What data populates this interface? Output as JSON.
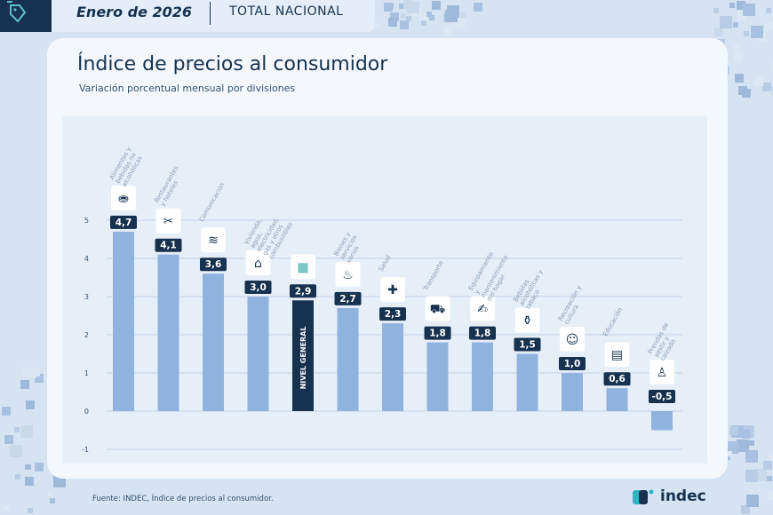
{
  "header": {
    "date": "Enero de 2026",
    "scope": "TOTAL NACIONAL"
  },
  "title": "Índice de precios al consumidor",
  "subtitle": "Variación porcentual mensual por divisiones",
  "source": "Fuente: INDEC, Índice de precios al consumidor.",
  "logo": "indec",
  "colors": {
    "bar": "#8fb3de",
    "highlight": "#16324f",
    "label_bg": "#16324f",
    "axis_text": "#3a5672",
    "grid": "#c2d2e6",
    "cat_text": "#8a9db3"
  },
  "chart_data": {
    "type": "bar",
    "title": "Índice de precios al consumidor",
    "ylim": [
      -1,
      5
    ],
    "yticks": [
      5,
      4,
      3,
      2,
      1,
      0,
      -1
    ],
    "highlight_index": 4,
    "highlight_label": "NIVEL GENERAL",
    "categories": [
      "Alimentos y bebidas no alcohólicas",
      "Restaurantes y hoteles",
      "Comunicación",
      "Vivienda, agua, electricidad, gas y otros combustibles",
      "",
      "Bienes y servicios varios",
      "Salud",
      "Transporte",
      "Equipamiento y mantenimiento del hogar",
      "Bebidas alcohólicas y tabaco",
      "Recreación y cultura",
      "Educación",
      "Prendas de vestir y calzado"
    ],
    "values": [
      4.7,
      4.1,
      3.6,
      3.0,
      2.9,
      2.7,
      2.3,
      1.8,
      1.8,
      1.5,
      1.0,
      0.6,
      -0.5
    ],
    "value_labels": [
      "4,7",
      "4,1",
      "3,6",
      "3,0",
      "2,9",
      "2,7",
      "2,3",
      "1,8",
      "1,8",
      "1,5",
      "1,0",
      "0,6",
      "-0,5"
    ],
    "icons": [
      "food-basket-icon",
      "restaurant-icon",
      "wifi-icon",
      "house-energy-icon",
      "shopping-basket-icon",
      "care-products-icon",
      "health-cross-icon",
      "car-icon",
      "tools-icon",
      "bottles-icon",
      "theater-masks-icon",
      "book-icon",
      "tshirt-icon"
    ]
  }
}
